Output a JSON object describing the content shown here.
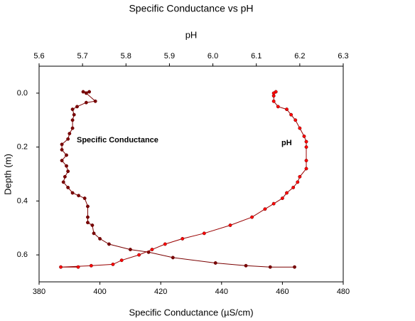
{
  "chart_data": {
    "type": "profile",
    "title": "Specific Conductance vs pH",
    "xlabel": "Specific Conductance (µS/cm)",
    "x2label": "pH",
    "ylabel": "Depth (m)",
    "xlim": [
      380,
      480
    ],
    "xticks": [
      380,
      400,
      420,
      440,
      460,
      480
    ],
    "x2lim": [
      5.6,
      6.3
    ],
    "x2ticks": [
      5.6,
      5.7,
      5.8,
      5.9,
      {
        "value": 6,
        "label": "6.0"
      },
      6.1,
      6.2,
      6.3
    ],
    "ylim": [
      -0.1,
      0.7
    ],
    "y_inverted": true,
    "yticks": [
      {
        "value": 0,
        "label": "0.0"
      },
      0.2,
      0.4,
      0.6
    ],
    "series": [
      {
        "name": "Specific Conductance",
        "color": "#7a0000",
        "values": [
          394.5,
          396.5,
          395.5,
          398.5,
          395.5,
          392.5,
          391,
          391.5,
          391,
          391,
          390,
          389.5,
          387.5,
          387.5,
          389,
          387.5,
          389,
          389.5,
          388.5,
          388,
          389.5,
          391,
          393,
          395,
          396,
          396,
          396,
          397.5,
          398,
          400,
          403,
          410,
          416,
          424,
          438,
          448,
          456,
          464
        ],
        "y": [
          -0.005,
          -0.005,
          0,
          0.03,
          0.035,
          0.05,
          0.06,
          0.08,
          0.1,
          0.13,
          0.15,
          0.17,
          0.19,
          0.21,
          0.23,
          0.25,
          0.27,
          0.29,
          0.31,
          0.33,
          0.35,
          0.37,
          0.38,
          0.39,
          0.42,
          0.46,
          0.48,
          0.49,
          0.52,
          0.54,
          0.56,
          0.58,
          0.59,
          0.61,
          0.63,
          0.64,
          0.645,
          0.645
        ]
      },
      {
        "name": "pH",
        "color": "#ff0000",
        "axis": "x2",
        "values": [
          6.145,
          6.14,
          6.14,
          6.14,
          6.15,
          6.17,
          6.18,
          6.19,
          6.2,
          6.21,
          6.215,
          6.215,
          6.215,
          6.215,
          6.2,
          6.195,
          6.185,
          6.17,
          6.16,
          6.14,
          6.12,
          6.09,
          6.04,
          5.98,
          5.93,
          5.89,
          5.86,
          5.83,
          5.79,
          5.77,
          5.72,
          5.65,
          5.69
        ],
        "y": [
          -0.005,
          0,
          0.01,
          0.03,
          0.05,
          0.06,
          0.08,
          0.1,
          0.13,
          0.16,
          0.18,
          0.2,
          0.25,
          0.28,
          0.31,
          0.33,
          0.35,
          0.37,
          0.39,
          0.41,
          0.43,
          0.46,
          0.49,
          0.52,
          0.54,
          0.56,
          0.58,
          0.6,
          0.62,
          0.635,
          0.64,
          0.645,
          0.645
        ]
      }
    ]
  }
}
